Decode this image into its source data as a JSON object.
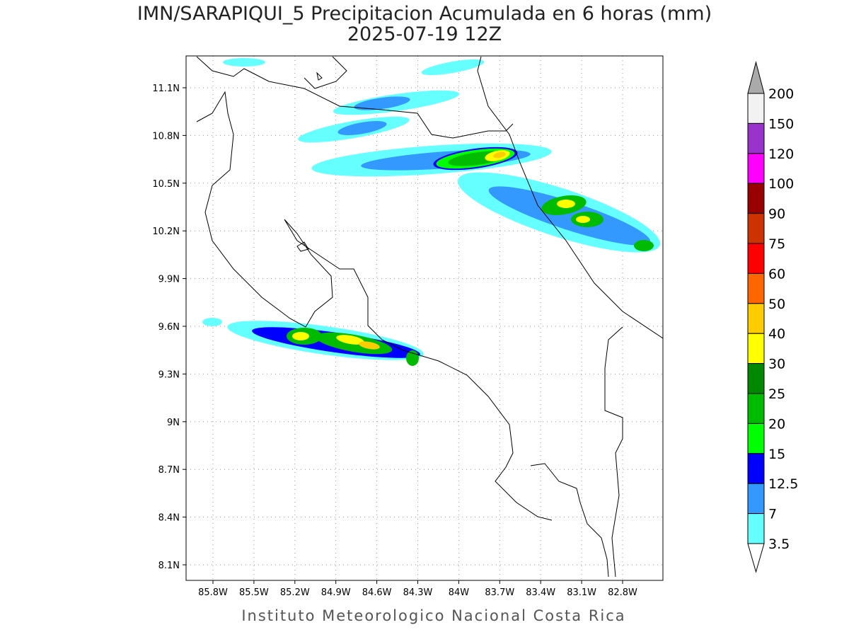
{
  "header": {
    "title": "IMN/SARAPIQUI_5 Precipitacion Acumulada en 6 horas (mm)",
    "subtitle": "2025-07-19 12Z"
  },
  "map": {
    "lat_labels": [
      "11.1N",
      "10.8N",
      "10.5N",
      "10.2N",
      "9.9N",
      "9.6N",
      "9.3N",
      "9N",
      "8.7N",
      "8.4N",
      "8.1N"
    ],
    "lon_labels": [
      "85.8W",
      "85.5W",
      "85.2W",
      "84.9W",
      "84.6W",
      "84.3W",
      "84W",
      "83.7W",
      "83.4W",
      "83.1W",
      "82.8W"
    ]
  },
  "colorbar": {
    "labels": [
      "200",
      "150",
      "120",
      "100",
      "90",
      "75",
      "60",
      "50",
      "40",
      "30",
      "25",
      "20",
      "15",
      "12.5",
      "7",
      "3.5"
    ],
    "colors": [
      "#f2f2f2",
      "#9933cc",
      "#ff00ff",
      "#990000",
      "#cc3300",
      "#ff0000",
      "#ff6600",
      "#ffcc00",
      "#ffff00",
      "#008800",
      "#00bb00",
      "#00ff00",
      "#0000ff",
      "#3399ff",
      "#66ffff"
    ],
    "over_color": "#aaaaaa",
    "under_color": "#ffffff"
  },
  "footer": "Instituto Meteorologico Nacional Costa Rica"
}
